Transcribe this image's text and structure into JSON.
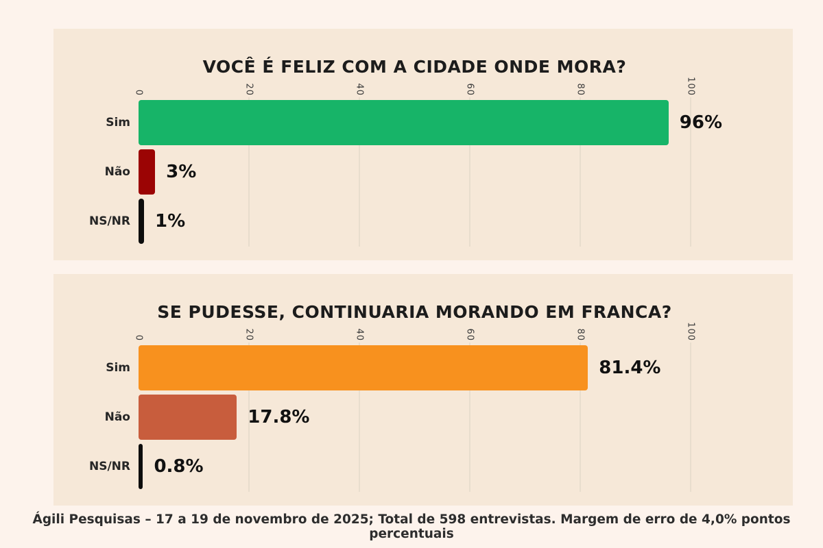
{
  "page": {
    "background_color": "#fdf3ec",
    "panel_color": "#f6e8d8",
    "gridline_color": "#e8ddcd",
    "footer_text": "Ágili Pesquisas – 17 a 19 de novembro de 2025; Total de 598 entrevistas. Margem de erro de 4,0% pontos percentuais"
  },
  "chart_data": [
    {
      "type": "bar",
      "orientation": "horizontal",
      "title": "VOCÊ É FELIZ COM A CIDADE ONDE MORA?",
      "categories": [
        "Sim",
        "Não",
        "NS/NR"
      ],
      "values": [
        96,
        3,
        1
      ],
      "value_labels": [
        "96%",
        "3%",
        "1%"
      ],
      "bar_colors": [
        "#17b468",
        "#9b0404",
        "#0d0d0d"
      ],
      "x_ticks": [
        0,
        20,
        40,
        60,
        80,
        100
      ],
      "xlim": [
        0,
        100
      ],
      "grid": true,
      "tick_rotation_deg": 90,
      "legend": false
    },
    {
      "type": "bar",
      "orientation": "horizontal",
      "title": "SE PUDESSE, CONTINUARIA MORANDO EM FRANCA?",
      "categories": [
        "Sim",
        "Não",
        "NS/NR"
      ],
      "values": [
        81.4,
        17.8,
        0.8
      ],
      "value_labels": [
        "81.4%",
        "17.8%",
        "0.8%"
      ],
      "bar_colors": [
        "#f8911e",
        "#c85d3d",
        "#0d0d0d"
      ],
      "x_ticks": [
        0,
        20,
        40,
        60,
        80,
        100
      ],
      "xlim": [
        0,
        100
      ],
      "grid": true,
      "tick_rotation_deg": 90,
      "legend": false
    }
  ]
}
